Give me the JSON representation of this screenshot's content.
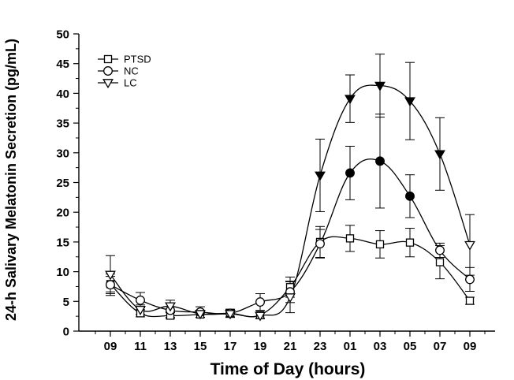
{
  "chart_data": {
    "type": "line",
    "xlabel": "Time of Day (hours)",
    "ylabel": "24-h Salivary Melatonin Secretion (pg/mL)",
    "categories": [
      "09",
      "11",
      "13",
      "15",
      "17",
      "19",
      "21",
      "23",
      "01",
      "03",
      "05",
      "07",
      "09"
    ],
    "ylim": [
      0,
      50
    ],
    "yticks": [
      0,
      5,
      10,
      15,
      20,
      25,
      30,
      35,
      40,
      45,
      50
    ],
    "grid": false,
    "legend_position": "top-left",
    "series": [
      {
        "name": "PTSD",
        "marker": "square",
        "values": [
          7.9,
          3.0,
          2.6,
          2.8,
          3.0,
          2.7,
          7.4,
          15.0,
          15.6,
          14.6,
          14.9,
          11.6,
          5.1
        ],
        "errors": [
          1.3,
          0.6,
          0.5,
          0.5,
          0.6,
          0.5,
          1.7,
          2.6,
          2.2,
          2.3,
          2.4,
          2.8,
          0.6
        ],
        "filled": [
          false,
          false,
          false,
          false,
          false,
          false,
          false,
          false,
          false,
          false,
          false,
          false,
          false
        ]
      },
      {
        "name": "NC",
        "marker": "circle",
        "values": [
          7.8,
          5.2,
          3.5,
          3.2,
          3.0,
          4.9,
          6.6,
          14.7,
          26.6,
          28.6,
          22.7,
          13.6,
          8.7
        ],
        "errors": [
          1.8,
          1.3,
          1.2,
          0.9,
          0.7,
          1.4,
          1.8,
          2.4,
          4.5,
          7.9,
          3.6,
          1.2,
          2.0
        ],
        "filled": [
          false,
          false,
          false,
          false,
          false,
          false,
          false,
          false,
          true,
          true,
          true,
          false,
          false
        ]
      },
      {
        "name": "LC",
        "marker": "triangle-down",
        "values": [
          9.5,
          3.6,
          4.2,
          2.9,
          2.9,
          2.6,
          5.7,
          26.2,
          39.1,
          41.3,
          38.7,
          29.8,
          14.5
        ],
        "errors": [
          3.2,
          0.8,
          1.0,
          0.6,
          0.5,
          0.5,
          2.6,
          6.1,
          4.0,
          5.3,
          6.5,
          6.1,
          5.1
        ],
        "filled": [
          false,
          false,
          false,
          false,
          false,
          false,
          false,
          true,
          true,
          true,
          true,
          true,
          false
        ]
      }
    ]
  }
}
